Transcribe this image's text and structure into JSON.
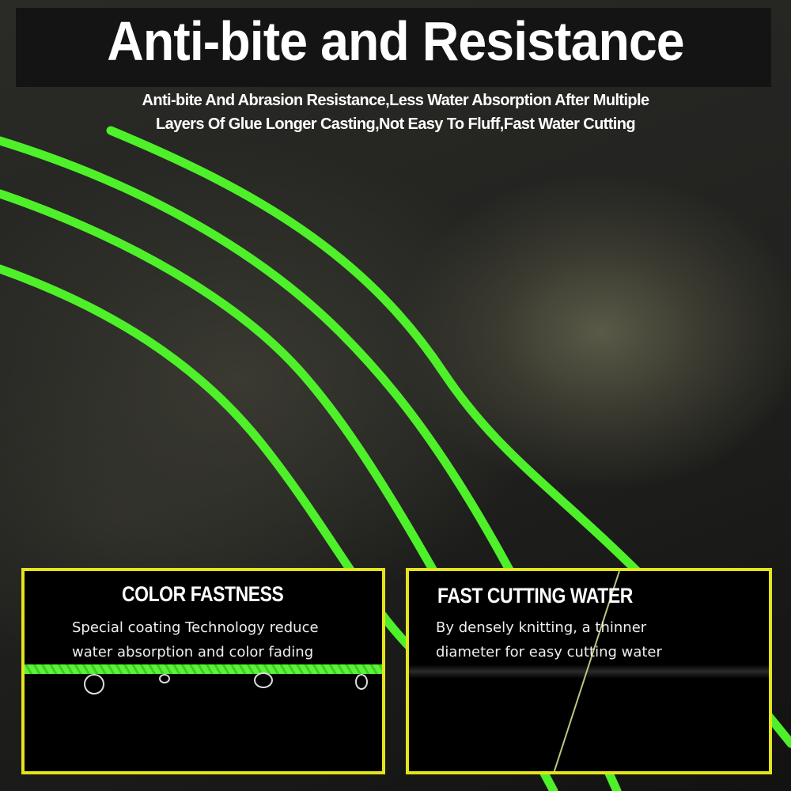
{
  "header": {
    "title": "Anti-bite and Resistance",
    "subtitle_line1": "Anti-bite And Abrasion Resistance,Less Water Absorption After Multiple",
    "subtitle_line2": "Layers Of Glue Longer Casting,Not Easy To Fluff,Fast Water Cutting"
  },
  "features": [
    {
      "title": "COLOR FASTNESS",
      "line1": "Special coating Technology reduce",
      "line2": "water absorption and color fading"
    },
    {
      "title": "FAST CUTTING WATER",
      "line1": "By densely knitting, a thinner",
      "line2": "diameter for easy cutting water"
    }
  ],
  "colors": {
    "line_green": "#4ef02a",
    "box_border": "#e4e41c",
    "header_bg": "#141414"
  }
}
